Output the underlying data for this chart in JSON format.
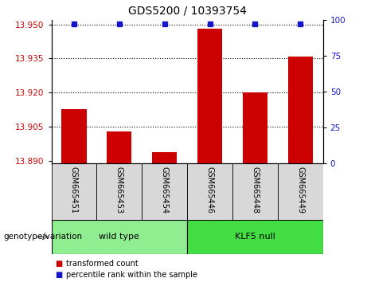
{
  "title": "GDS5200 / 10393754",
  "samples": [
    "GSM665451",
    "GSM665453",
    "GSM665454",
    "GSM665446",
    "GSM665448",
    "GSM665449"
  ],
  "red_values": [
    13.913,
    13.903,
    13.894,
    13.948,
    13.92,
    13.936
  ],
  "blue_values": [
    100,
    100,
    100,
    100,
    100,
    100
  ],
  "ylim_left": [
    13.889,
    13.952
  ],
  "ylim_right": [
    0,
    100
  ],
  "yticks_left": [
    13.89,
    13.905,
    13.92,
    13.935,
    13.95
  ],
  "yticks_right": [
    0,
    25,
    50,
    75,
    100
  ],
  "gridlines": [
    13.935,
    13.92,
    13.905
  ],
  "groups": [
    {
      "label": "wild type",
      "indices": [
        0,
        1,
        2
      ],
      "color": "#90EE90"
    },
    {
      "label": "KLF5 null",
      "indices": [
        3,
        4,
        5
      ],
      "color": "#44DD44"
    }
  ],
  "group_label": "genotype/variation",
  "legend_red": "transformed count",
  "legend_blue": "percentile rank within the sample",
  "bar_color_red": "#CC0000",
  "bar_color_blue": "#1515CC",
  "tick_color_left": "#CC0000",
  "tick_color_right": "#1515CC",
  "bar_width": 0.55,
  "xlim": [
    -0.5,
    5.5
  ],
  "fig_width": 4.61,
  "fig_height": 3.54,
  "dpi": 100
}
